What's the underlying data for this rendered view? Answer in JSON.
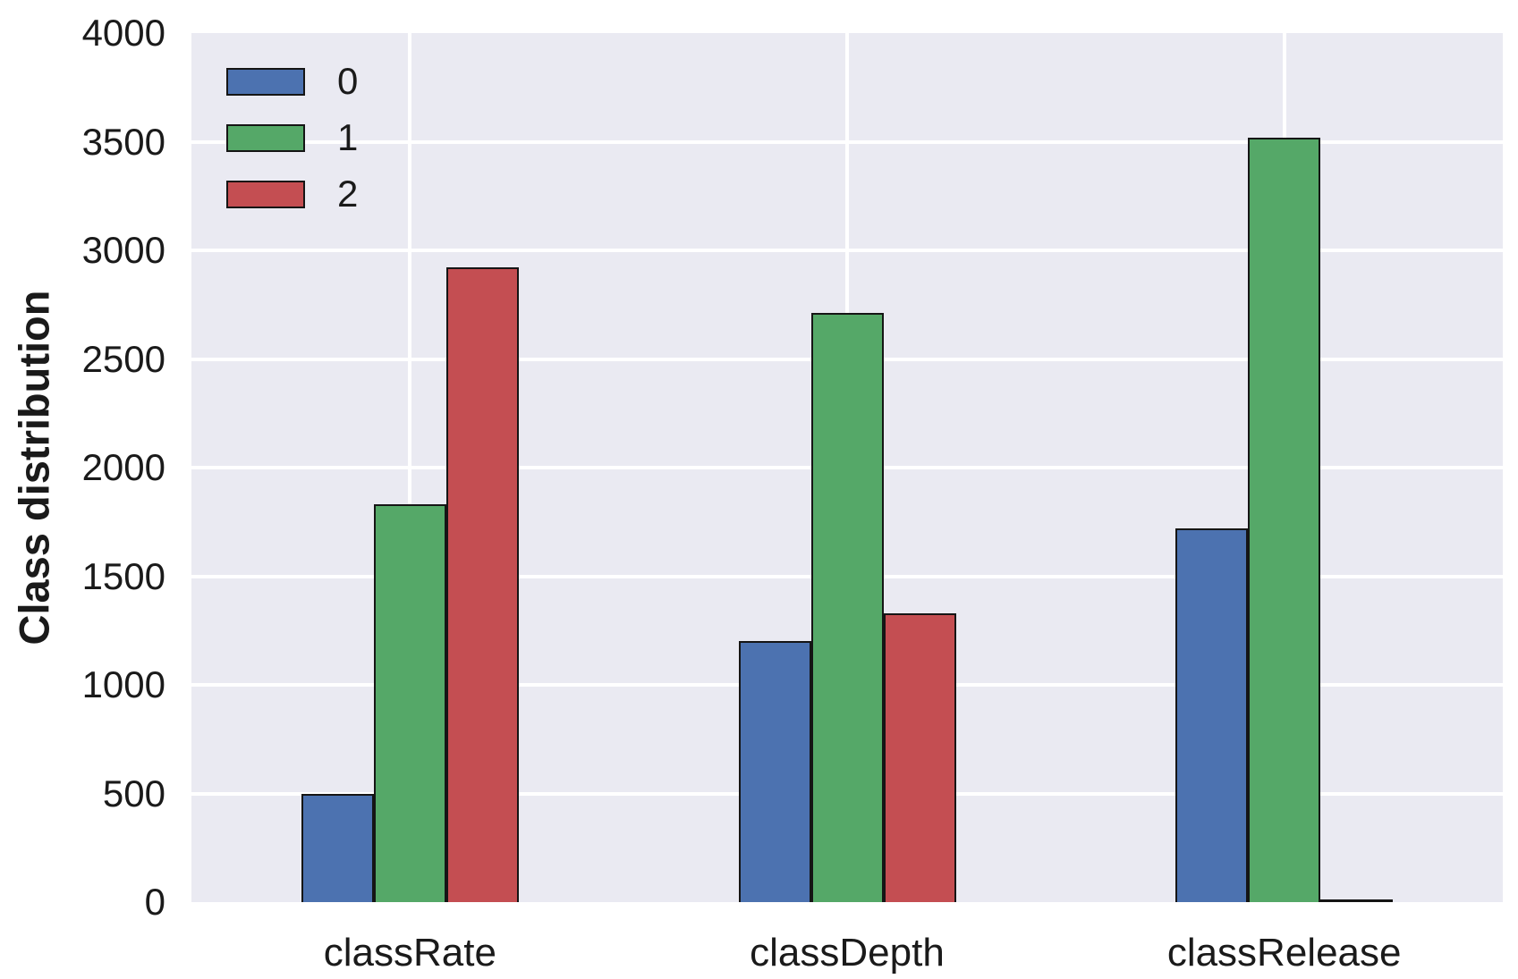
{
  "chart_data": {
    "type": "bar",
    "title": "",
    "xlabel": "",
    "ylabel": "Class distribution",
    "categories": [
      "classRate",
      "classDepth",
      "classRelease"
    ],
    "series": [
      {
        "name": "0",
        "color": "#4c72b0",
        "values": [
          500,
          1200,
          1720
        ]
      },
      {
        "name": "1",
        "color": "#55a868",
        "values": [
          1830,
          2710,
          3520
        ]
      },
      {
        "name": "2",
        "color": "#c44e52",
        "values": [
          2920,
          1330,
          0
        ]
      }
    ],
    "ylim": [
      0,
      4000
    ],
    "yticks": [
      0,
      500,
      1000,
      1500,
      2000,
      2500,
      3000,
      3500,
      4000
    ],
    "grid": true,
    "legend_position": "upper-left",
    "plot_background_color": "#eaeaf2",
    "gridline_color": "#ffffff",
    "bar_edge_color": "#151515",
    "figure_background_color": "#ffffff"
  }
}
